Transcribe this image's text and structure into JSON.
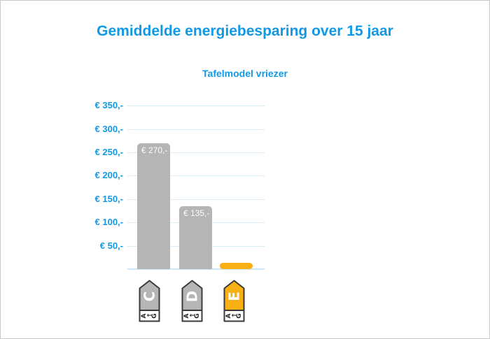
{
  "page": {
    "title": "Gemiddelde energiebesparing over 15 jaar",
    "subtitle": "Tafelmodel vriezer"
  },
  "colors": {
    "accent_blue": "#1199e6",
    "gridline_blue": "#d8ecf8",
    "baseline_blue": "#cde6f4",
    "bar_gray": "#b5b5b5",
    "bar_orange": "#f9b014",
    "tag_border": "#3a3a3a",
    "tag_letter_white": "#ffffff",
    "tag_scale_dark": "#2b2b2b",
    "background": "#ffffff"
  },
  "chart_data": {
    "type": "bar",
    "title": "Gemiddelde energiebesparing over 15 jaar",
    "subtitle": "Tafelmodel vriezer",
    "xlabel": "",
    "ylabel": "",
    "categories": [
      "C",
      "D",
      "E"
    ],
    "values": [
      270,
      135,
      10
    ],
    "bar_labels": [
      "€ 270,-",
      "€ 135,-",
      ""
    ],
    "bar_colors": [
      "#b5b5b5",
      "#b5b5b5",
      "#f9b014"
    ],
    "tag_colors": [
      "#b5b5b5",
      "#b5b5b5",
      "#f9b014"
    ],
    "y_ticks": [
      "€ 350,-",
      "€ 300,-",
      "€ 250,-",
      "€ 200,-",
      "€ 150,-",
      "€ 100,-",
      "€ 50,-"
    ],
    "y_tick_values": [
      350,
      300,
      250,
      200,
      150,
      100,
      50
    ],
    "ylim": [
      0,
      375
    ],
    "grid": true,
    "legend": null,
    "x_axis_icons": [
      "energy-label-C",
      "energy-label-D",
      "energy-label-E"
    ],
    "energy_scale": {
      "start": "A",
      "arrow": "←",
      "end": "G"
    },
    "currency": "€"
  }
}
